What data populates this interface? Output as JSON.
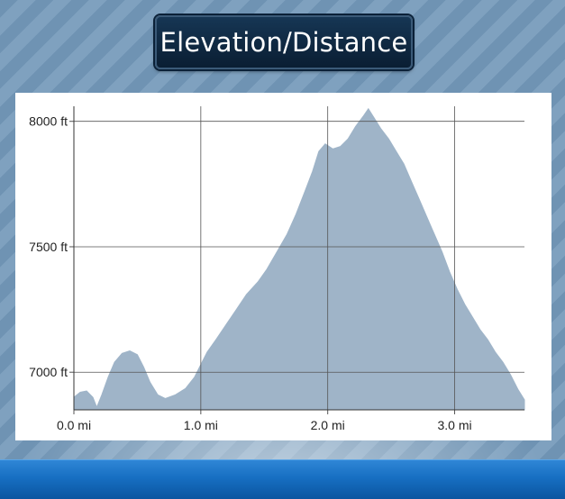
{
  "header": {
    "title": "Elevation/Distance"
  },
  "theme": {
    "fill_color": "#9fb4c8",
    "grid_color": "#555555",
    "bar_color": "#1a6fc0"
  },
  "chart_data": {
    "type": "area",
    "title": "Elevation/Distance",
    "xlabel": "",
    "ylabel": "",
    "x_unit": "mi",
    "y_unit": "ft",
    "xlim": [
      0,
      3.55
    ],
    "ylim": [
      6850,
      8060
    ],
    "x_ticks": [
      0.0,
      1.0,
      2.0,
      3.0
    ],
    "x_tick_labels": [
      "0.0 mi",
      "1.0 mi",
      "2.0 mi",
      "3.0 mi"
    ],
    "y_ticks": [
      7000,
      7500,
      8000
    ],
    "y_tick_labels": [
      "7000 ft",
      "7500 ft",
      "8000 ft"
    ],
    "grid": true,
    "legend": "none",
    "points": [
      [
        0.0,
        6900
      ],
      [
        0.05,
        6920
      ],
      [
        0.1,
        6925
      ],
      [
        0.15,
        6900
      ],
      [
        0.18,
        6860
      ],
      [
        0.22,
        6910
      ],
      [
        0.27,
        6980
      ],
      [
        0.32,
        7040
      ],
      [
        0.38,
        7075
      ],
      [
        0.44,
        7085
      ],
      [
        0.5,
        7070
      ],
      [
        0.55,
        7020
      ],
      [
        0.6,
        6960
      ],
      [
        0.66,
        6910
      ],
      [
        0.72,
        6895
      ],
      [
        0.8,
        6910
      ],
      [
        0.88,
        6935
      ],
      [
        0.95,
        6980
      ],
      [
        1.0,
        7030
      ],
      [
        1.05,
        7080
      ],
      [
        1.12,
        7130
      ],
      [
        1.2,
        7190
      ],
      [
        1.28,
        7250
      ],
      [
        1.36,
        7310
      ],
      [
        1.45,
        7360
      ],
      [
        1.52,
        7410
      ],
      [
        1.6,
        7480
      ],
      [
        1.68,
        7550
      ],
      [
        1.75,
        7630
      ],
      [
        1.82,
        7720
      ],
      [
        1.88,
        7800
      ],
      [
        1.93,
        7880
      ],
      [
        1.98,
        7910
      ],
      [
        2.04,
        7890
      ],
      [
        2.1,
        7900
      ],
      [
        2.16,
        7930
      ],
      [
        2.22,
        7980
      ],
      [
        2.28,
        8020
      ],
      [
        2.32,
        8050
      ],
      [
        2.37,
        8010
      ],
      [
        2.42,
        7970
      ],
      [
        2.48,
        7930
      ],
      [
        2.54,
        7880
      ],
      [
        2.6,
        7830
      ],
      [
        2.66,
        7760
      ],
      [
        2.72,
        7690
      ],
      [
        2.78,
        7620
      ],
      [
        2.84,
        7550
      ],
      [
        2.9,
        7480
      ],
      [
        2.96,
        7400
      ],
      [
        3.02,
        7330
      ],
      [
        3.08,
        7270
      ],
      [
        3.14,
        7220
      ],
      [
        3.2,
        7170
      ],
      [
        3.26,
        7130
      ],
      [
        3.32,
        7080
      ],
      [
        3.38,
        7040
      ],
      [
        3.44,
        6990
      ],
      [
        3.5,
        6930
      ],
      [
        3.55,
        6890
      ]
    ]
  }
}
